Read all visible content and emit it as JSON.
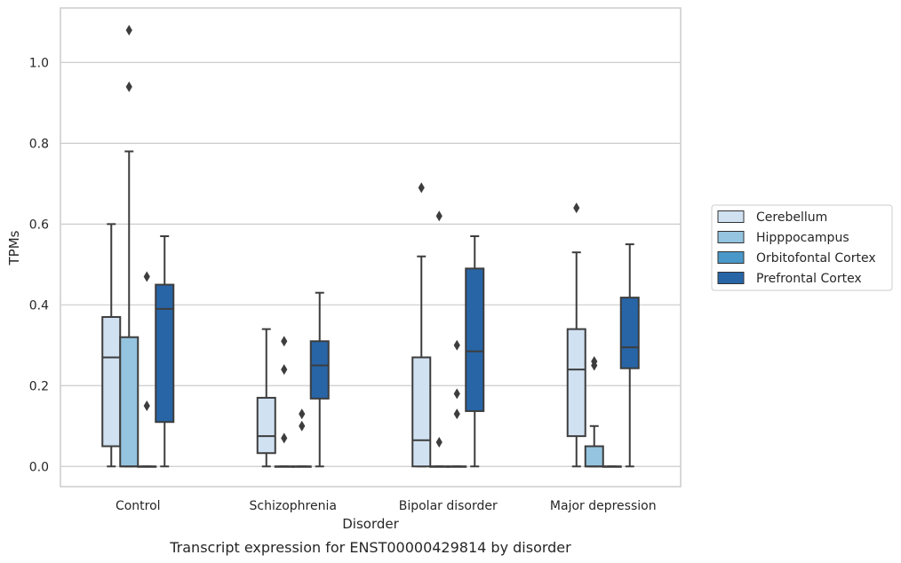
{
  "chart_data": {
    "type": "boxplot",
    "xlabel": "Disorder",
    "ylabel": "TPMs",
    "caption": "Transcript expression for ENST00000429814 by disorder",
    "ylim": [
      -0.05,
      1.135
    ],
    "yticks": [
      "0.0",
      "0.2",
      "0.4",
      "0.6",
      "0.8",
      "1.0"
    ],
    "ytick_values": [
      0.0,
      0.2,
      0.4,
      0.6,
      0.8,
      1.0
    ],
    "grid": "horizontal",
    "legend_position": "right",
    "categories": [
      "Control",
      "Schizophrenia",
      "Bipolar disorder",
      "Major depression"
    ],
    "colors": {
      "Cerebellum": "#d0e1f2",
      "Hipppocampus": "#94c4df",
      "Orbitofontal Cortex": "#4a98c9",
      "Prefrontal Cortex": "#2765a7",
      "line": "#3d3d3d",
      "grid": "#cccccc",
      "frame": "#cccccc"
    },
    "series": [
      {
        "name": "Cerebellum",
        "boxes": [
          {
            "whislo": 0.0,
            "q1": 0.05,
            "med": 0.27,
            "q3": 0.37,
            "whishi": 0.6,
            "fliers": []
          },
          {
            "whislo": 0.0,
            "q1": 0.033,
            "med": 0.075,
            "q3": 0.17,
            "whishi": 0.34,
            "fliers": []
          },
          {
            "whislo": 0.0,
            "q1": 0.0,
            "med": 0.065,
            "q3": 0.27,
            "whishi": 0.52,
            "fliers": [
              0.69
            ]
          },
          {
            "whislo": 0.0,
            "q1": 0.075,
            "med": 0.24,
            "q3": 0.34,
            "whishi": 0.53,
            "fliers": [
              0.64
            ]
          }
        ]
      },
      {
        "name": "Hipppocampus",
        "boxes": [
          {
            "whislo": 0.0,
            "q1": 0.0,
            "med": 0.0,
            "q3": 0.32,
            "whishi": 0.78,
            "fliers": [
              0.94,
              1.08
            ]
          },
          {
            "whislo": 0.0,
            "q1": 0.0,
            "med": 0.0,
            "q3": 0.0,
            "whishi": 0.0,
            "fliers": [
              0.07,
              0.24,
              0.31
            ]
          },
          {
            "whislo": 0.0,
            "q1": 0.0,
            "med": 0.0,
            "q3": 0.0,
            "whishi": 0.0,
            "fliers": [
              0.06,
              0.62
            ]
          },
          {
            "whislo": 0.0,
            "q1": 0.0,
            "med": 0.0,
            "q3": 0.05,
            "whishi": 0.1,
            "fliers": [
              0.25,
              0.26
            ]
          }
        ]
      },
      {
        "name": "Orbitofontal Cortex",
        "boxes": [
          {
            "whislo": 0.0,
            "q1": 0.0,
            "med": 0.0,
            "q3": 0.0,
            "whishi": 0.0,
            "fliers": [
              0.15,
              0.47
            ]
          },
          {
            "whislo": 0.0,
            "q1": 0.0,
            "med": 0.0,
            "q3": 0.0,
            "whishi": 0.0,
            "fliers": [
              0.1,
              0.13
            ]
          },
          {
            "whislo": 0.0,
            "q1": 0.0,
            "med": 0.0,
            "q3": 0.0,
            "whishi": 0.0,
            "fliers": [
              0.13,
              0.18,
              0.3
            ]
          },
          {
            "whislo": 0.0,
            "q1": 0.0,
            "med": 0.0,
            "q3": 0.0,
            "whishi": 0.0,
            "fliers": []
          }
        ]
      },
      {
        "name": "Prefrontal Cortex",
        "boxes": [
          {
            "whislo": 0.0,
            "q1": 0.11,
            "med": 0.39,
            "q3": 0.45,
            "whishi": 0.57,
            "fliers": []
          },
          {
            "whislo": 0.0,
            "q1": 0.168,
            "med": 0.25,
            "q3": 0.31,
            "whishi": 0.43,
            "fliers": []
          },
          {
            "whislo": 0.0,
            "q1": 0.137,
            "med": 0.285,
            "q3": 0.49,
            "whishi": 0.57,
            "fliers": []
          },
          {
            "whislo": 0.0,
            "q1": 0.243,
            "med": 0.295,
            "q3": 0.418,
            "whishi": 0.55,
            "fliers": []
          }
        ]
      }
    ]
  }
}
